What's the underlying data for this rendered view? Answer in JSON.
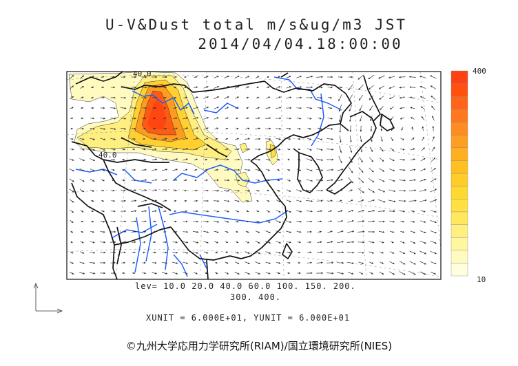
{
  "title": {
    "line1": "U-V&Dust total m/s&ug/m3 JST",
    "line2": "2014/04/04.18:00:00"
  },
  "colorbar": {
    "max_label": "400",
    "min_label": "10",
    "colors": [
      "#ffffe0",
      "#fffbc0",
      "#fff6a0",
      "#fff080",
      "#ffe860",
      "#ffe040",
      "#ffd830",
      "#ffcc28",
      "#ffc020",
      "#ffb020",
      "#ff9e20",
      "#ff8c20",
      "#ff7820",
      "#ff6418",
      "#ff5010",
      "#ff4010"
    ]
  },
  "contour_labels": [
    "40.0",
    "40.0"
  ],
  "legend": {
    "lev_line1": "lev= 10.0 20.0 40.0 60.0 100. 150. 200.",
    "lev_line2": "300. 400.",
    "units": "XUNIT = 6.000E+01, YUNIT = 6.000E+01"
  },
  "credit": "©九州大学応用力学研究所(RIAM)/国立環境研究所(NIES)"
}
